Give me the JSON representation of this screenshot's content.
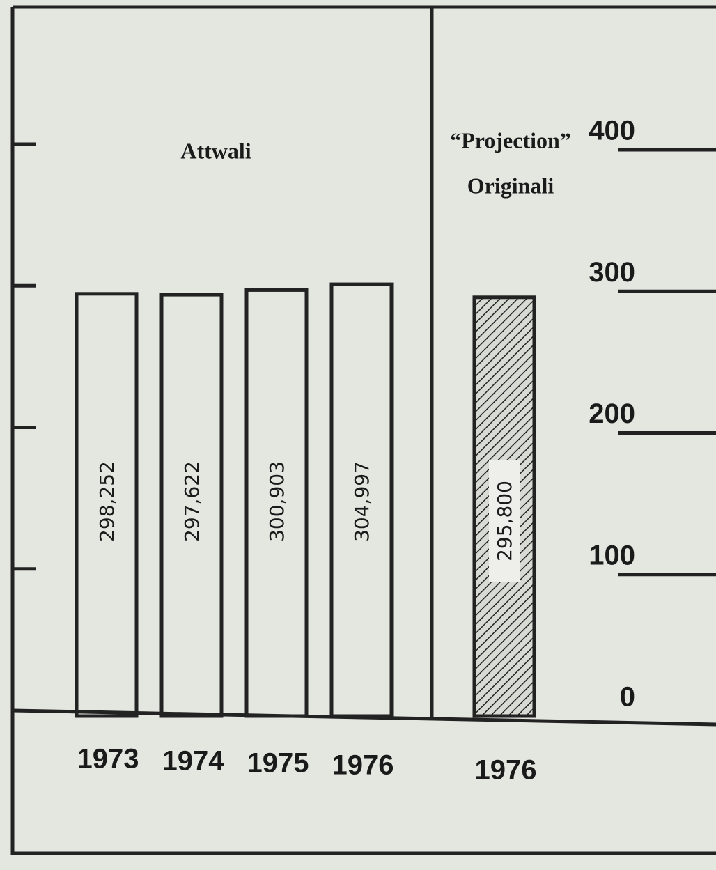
{
  "chart_data": {
    "type": "bar",
    "annotations": [
      "Attwali",
      "“Projection”",
      "Originali"
    ],
    "categories": [
      "1973",
      "1974",
      "1975",
      "1976",
      "1976"
    ],
    "values": [
      298.252,
      297.622,
      300.903,
      304.997,
      295.8
    ],
    "value_labels": [
      "298,252",
      "297,622",
      "300,903",
      "304,997",
      "295,800"
    ],
    "bar_styles": [
      "plain",
      "plain",
      "plain",
      "plain",
      "hatched"
    ],
    "color": "#222222",
    "ylim": [
      0,
      400
    ],
    "yticks": [
      0,
      100,
      200,
      300,
      400
    ]
  }
}
